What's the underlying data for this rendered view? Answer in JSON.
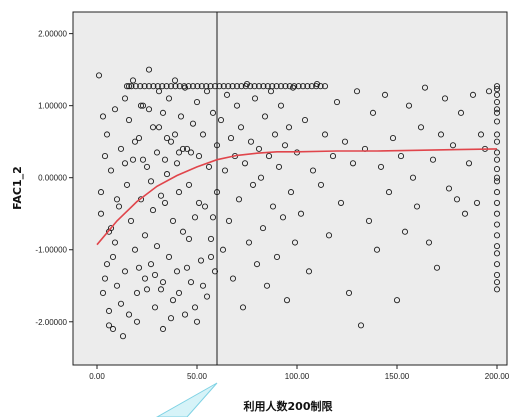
{
  "chart_data": {
    "type": "scatter",
    "xlabel": "利用人数200制限",
    "ylabel": "FAC1_2",
    "xlim": [
      -12,
      205
    ],
    "ylim": [
      -2.6,
      2.3
    ],
    "x_ticks": [
      0,
      50,
      100,
      150,
      200
    ],
    "x_tick_labels": [
      "0.00",
      "50.00",
      "100.00",
      "150.00",
      "200.00"
    ],
    "y_ticks": [
      2,
      1,
      0,
      -1,
      -2
    ],
    "y_tick_labels": [
      "2.00000",
      "1.00000",
      "0.00000",
      "-1.00000",
      "-2.00000"
    ],
    "reference_line_x": 60,
    "grid": false,
    "colors": {
      "plot_background": "#ececec",
      "marker_stroke": "#1f1f1f",
      "fit_line": "#e0454b",
      "reference_line": "#1a1a1a",
      "callout": "#d6f3f8",
      "callout_stroke": "#7fd2e4"
    },
    "fit_line": {
      "name": "",
      "x": [
        0,
        10,
        20,
        30,
        40,
        50,
        60,
        70,
        80,
        90,
        100,
        120,
        140,
        160,
        180,
        200
      ],
      "y": [
        -0.93,
        -0.6,
        -0.33,
        -0.12,
        0.03,
        0.15,
        0.25,
        0.31,
        0.34,
        0.36,
        0.36,
        0.37,
        0.37,
        0.38,
        0.39,
        0.4
      ]
    },
    "ceiling_row": {
      "y": 1.27,
      "x_start": 15,
      "x_end": 115,
      "step": 2.2
    },
    "column_200": [
      1.27,
      1.23,
      1.15,
      1.05,
      0.95,
      0.9,
      0.78,
      0.6,
      0.5,
      0.35,
      0.25,
      0.12,
      0.0,
      -0.05,
      -0.2,
      -0.35,
      -0.5,
      -0.65,
      -0.8,
      -0.95,
      -1.05,
      -1.2,
      -1.35,
      -1.45,
      -1.55
    ],
    "points": [
      [
        1,
        1.42
      ],
      [
        3,
        0.85
      ],
      [
        4,
        0.3
      ],
      [
        2,
        -0.5
      ],
      [
        5,
        -1.2
      ],
      [
        3,
        -1.6
      ],
      [
        6,
        -2.05
      ],
      [
        4,
        -1.4
      ],
      [
        2,
        -0.2
      ],
      [
        5,
        0.6
      ],
      [
        7,
        -0.7
      ],
      [
        6,
        -1.85
      ],
      [
        8,
        -1.1
      ],
      [
        7,
        0.1
      ],
      [
        9,
        0.95
      ],
      [
        8,
        -2.1
      ],
      [
        10,
        -1.5
      ],
      [
        11,
        -0.4
      ],
      [
        9,
        -0.9
      ],
      [
        12,
        0.4
      ],
      [
        12,
        -1.75
      ],
      [
        13,
        -2.2
      ],
      [
        14,
        1.1
      ],
      [
        15,
        -0.1
      ],
      [
        14,
        -1.3
      ],
      [
        16,
        0.8
      ],
      [
        17,
        -0.6
      ],
      [
        16,
        -1.9
      ],
      [
        18,
        0.25
      ],
      [
        19,
        -1.0
      ],
      [
        18,
        1.35
      ],
      [
        20,
        -1.6
      ],
      [
        21,
        0.55
      ],
      [
        22,
        -0.3
      ],
      [
        20,
        -2.0
      ],
      [
        23,
        1.0
      ],
      [
        24,
        -0.8
      ],
      [
        25,
        0.15
      ],
      [
        24,
        -1.4
      ],
      [
        26,
        1.5
      ],
      [
        27,
        -1.2
      ],
      [
        28,
        0.7
      ],
      [
        27,
        -0.05
      ],
      [
        29,
        -1.8
      ],
      [
        30,
        0.35
      ],
      [
        31,
        1.2
      ],
      [
        30,
        -0.95
      ],
      [
        32,
        -1.55
      ],
      [
        33,
        0.9
      ],
      [
        34,
        -0.35
      ],
      [
        33,
        -2.1
      ],
      [
        35,
        0.05
      ],
      [
        36,
        1.1
      ],
      [
        36,
        -1.1
      ],
      [
        37,
        0.5
      ],
      [
        38,
        -0.6
      ],
      [
        38,
        -1.7
      ],
      [
        39,
        1.35
      ],
      [
        40,
        0.2
      ],
      [
        41,
        -0.2
      ],
      [
        40,
        -1.3
      ],
      [
        42,
        0.85
      ],
      [
        43,
        -0.75
      ],
      [
        44,
        1.25
      ],
      [
        44,
        -1.9
      ],
      [
        45,
        0.4
      ],
      [
        46,
        -0.1
      ],
      [
        47,
        -1.45
      ],
      [
        48,
        0.75
      ],
      [
        49,
        -0.55
      ],
      [
        50,
        1.05
      ],
      [
        50,
        -2.0
      ],
      [
        51,
        0.3
      ],
      [
        52,
        -1.15
      ],
      [
        53,
        0.6
      ],
      [
        54,
        -0.4
      ],
      [
        55,
        1.2
      ],
      [
        55,
        -1.65
      ],
      [
        56,
        0.15
      ],
      [
        57,
        -0.85
      ],
      [
        58,
        0.9
      ],
      [
        59,
        -1.3
      ],
      [
        60,
        0.45
      ],
      [
        60,
        -0.2
      ],
      [
        62,
        0.8
      ],
      [
        63,
        -1.0
      ],
      [
        64,
        0.1
      ],
      [
        65,
        1.15
      ],
      [
        66,
        -0.6
      ],
      [
        67,
        0.55
      ],
      [
        68,
        -1.4
      ],
      [
        69,
        0.3
      ],
      [
        70,
        1.0
      ],
      [
        71,
        -0.3
      ],
      [
        72,
        0.7
      ],
      [
        73,
        -1.8
      ],
      [
        74,
        0.2
      ],
      [
        75,
        1.3
      ],
      [
        76,
        -0.9
      ],
      [
        77,
        0.5
      ],
      [
        78,
        -0.1
      ],
      [
        79,
        1.1
      ],
      [
        80,
        -1.2
      ],
      [
        81,
        0.4
      ],
      [
        82,
        0.0
      ],
      [
        83,
        -0.7
      ],
      [
        84,
        0.85
      ],
      [
        85,
        -1.5
      ],
      [
        86,
        0.3
      ],
      [
        87,
        1.2
      ],
      [
        88,
        -0.4
      ],
      [
        89,
        0.6
      ],
      [
        90,
        -1.1
      ],
      [
        91,
        0.15
      ],
      [
        92,
        1.0
      ],
      [
        93,
        -0.55
      ],
      [
        94,
        0.45
      ],
      [
        95,
        -1.7
      ],
      [
        96,
        0.7
      ],
      [
        97,
        -0.2
      ],
      [
        98,
        1.25
      ],
      [
        99,
        -0.9
      ],
      [
        100,
        0.35
      ],
      [
        102,
        -0.5
      ],
      [
        104,
        0.8
      ],
      [
        106,
        -1.3
      ],
      [
        108,
        0.1
      ],
      [
        110,
        1.3
      ],
      [
        112,
        -0.1
      ],
      [
        114,
        0.6
      ],
      [
        116,
        -0.8
      ],
      [
        118,
        0.3
      ],
      [
        120,
        1.05
      ],
      [
        122,
        -0.35
      ],
      [
        124,
        0.5
      ],
      [
        126,
        -1.6
      ],
      [
        128,
        0.2
      ],
      [
        130,
        1.2
      ],
      [
        132,
        -2.05
      ],
      [
        134,
        0.4
      ],
      [
        136,
        -0.6
      ],
      [
        138,
        0.9
      ],
      [
        140,
        -1.0
      ],
      [
        142,
        0.15
      ],
      [
        144,
        1.15
      ],
      [
        146,
        -0.2
      ],
      [
        148,
        0.55
      ],
      [
        150,
        -1.7
      ],
      [
        152,
        0.3
      ],
      [
        154,
        -0.75
      ],
      [
        156,
        1.0
      ],
      [
        158,
        0.0
      ],
      [
        160,
        -0.4
      ],
      [
        162,
        0.7
      ],
      [
        164,
        1.25
      ],
      [
        166,
        -0.9
      ],
      [
        168,
        0.25
      ],
      [
        170,
        -1.25
      ],
      [
        172,
        0.6
      ],
      [
        174,
        1.1
      ],
      [
        176,
        -0.15
      ],
      [
        178,
        0.45
      ],
      [
        180,
        -0.3
      ],
      [
        182,
        0.9
      ],
      [
        184,
        -0.5
      ],
      [
        186,
        0.2
      ],
      [
        188,
        1.15
      ],
      [
        190,
        -0.35
      ],
      [
        192,
        0.6
      ],
      [
        194,
        0.4
      ],
      [
        196,
        1.2
      ],
      [
        16,
        1.27
      ],
      [
        22,
        1.0
      ],
      [
        26,
        0.95
      ],
      [
        31,
        0.7
      ],
      [
        35,
        0.55
      ],
      [
        39,
        0.6
      ],
      [
        43,
        0.4
      ],
      [
        47,
        0.35
      ],
      [
        21,
        -1.25
      ],
      [
        25,
        -1.55
      ],
      [
        29,
        -1.35
      ],
      [
        33,
        -1.45
      ],
      [
        37,
        -1.95
      ],
      [
        41,
        -1.6
      ],
      [
        45,
        -1.25
      ],
      [
        49,
        -1.8
      ],
      [
        53,
        -1.5
      ],
      [
        57,
        -1.1
      ],
      [
        6,
        -0.75
      ],
      [
        10,
        -0.3
      ],
      [
        14,
        0.2
      ],
      [
        19,
        0.5
      ],
      [
        23,
        0.25
      ],
      [
        28,
        -0.45
      ],
      [
        32,
        -0.25
      ],
      [
        34,
        0.25
      ],
      [
        41,
        0.35
      ],
      [
        46,
        -0.85
      ],
      [
        51,
        -0.35
      ],
      [
        58,
        -0.55
      ]
    ]
  }
}
